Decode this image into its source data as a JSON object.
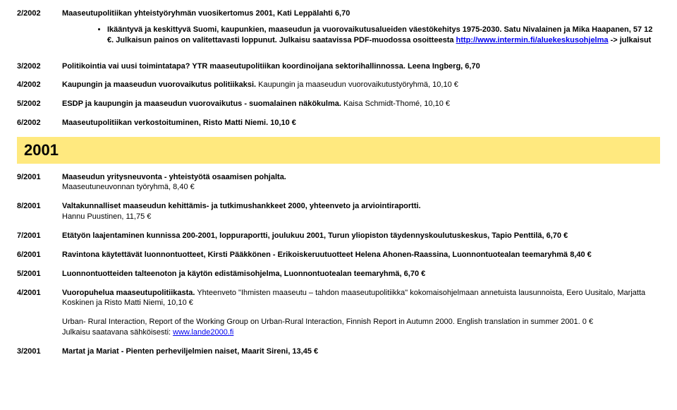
{
  "entries": [
    {
      "id": "2/2002",
      "title": "Maaseutupolitiikan yhteistyöryhmän vuosikertomus 2001, Kati Leppälahti 6,70",
      "bullets": [
        "Ikääntyvä ja keskittyvä Suomi, kaupunkien, maaseudun ja vuorovaikutusalueiden väestökehitys 1975-2030. Satu Nivalainen ja Mika Haapanen, 57 12 €. Julkaisun painos on valitettavasti loppunut. Julkaisu saatavissa PDF-muodossa osoitteesta"
      ],
      "link1_text": "http://www.intermin.fi/aluekeskusohjelma",
      "after_link1": " -> julkaisut"
    },
    {
      "id": "3/2002",
      "text": "Politikointia vai uusi toimintatapa? YTR maaseutupolitiikan koordinoijana sektorihallinnossa. Leena Ingberg, 6,70"
    },
    {
      "id": "4/2002",
      "text_bold": "Kaupungin ja maaseudun vuorovaikutus politiikaksi.",
      "text_rest": " Kaupungin ja maaseudun vuorovaikutustyöryhmä, 10,10 €"
    },
    {
      "id": "5/2002",
      "text_bold": "ESDP ja kaupungin ja maaseudun vuorovaikutus - suomalainen näkökulma.",
      "text_rest": " Kaisa Schmidt-Thomé, 10,10 €"
    },
    {
      "id": "6/2002",
      "text_bold": "Maaseutupolitiikan verkostoituminen, Risto Matti Niemi.  10,10 €"
    }
  ],
  "year_banner": "2001",
  "entries2": [
    {
      "id": "9/2001",
      "line1_bold": "Maaseudun yritysneuvonta - yhteistyötä osaamisen pohjalta.",
      "line2": "Maaseutuneuvonnan työryhmä, 8,40 €"
    },
    {
      "id": "8/2001",
      "line1_bold": "Valtakunnalliset maaseudun kehittämis- ja tutkimushankkeet 2000, yhteenveto ja arviointiraportti.",
      "line2": "Hannu Puustinen,  11,75 €"
    },
    {
      "id": "7/2001",
      "text_bold": "Etätyön laajentaminen kunnissa 200-2001, loppuraportti, joulukuu 2001, Turun yliopiston täydennyskoulutuskeskus, Tapio Penttilä,  6,70 €"
    },
    {
      "id": "6/2001",
      "text_bold": "Ravintona käytettävät luonnontuotteet, Kirsti Pääkkönen - Erikoiskeruutuotteet Helena Ahonen-Raassina, Luonnontuotealan teemaryhmä 8,40 €"
    },
    {
      "id": "5/2001",
      "text_bold": "Luonnontuotteiden talteenoton ja käytön edistämisohjelma, Luonnontuotealan teemaryhmä, 6,70 €"
    },
    {
      "id": "4/2001",
      "lead_bold": "Vuoropuhelua maaseutupolitiikasta.",
      "rest": " Yhteenveto \"Ihmisten maaseutu – tahdon maaseutupolitiikka\" kokomaisohjelmaan annetuista lausunnoista, Eero Uusitalo, Marjatta Koskinen ja Risto Matti Niemi, 10,10 €"
    }
  ],
  "urban_block": {
    "line1": "Urban- Rural Interaction, Report of the Working Group on Urban-Rural Interaction, Finnish Report in Autumn 2000. English translation in summer 2001. 0 €",
    "line2_lead": "Julkaisu saatavana sähköisesti: ",
    "link_text": "www.lande2000.fi"
  },
  "entry_last": {
    "id": "3/2001",
    "text_bold": "Martat ja Mariat - Pienten perheviljelmien naiset, Maarit Sireni, 13,45 €"
  }
}
